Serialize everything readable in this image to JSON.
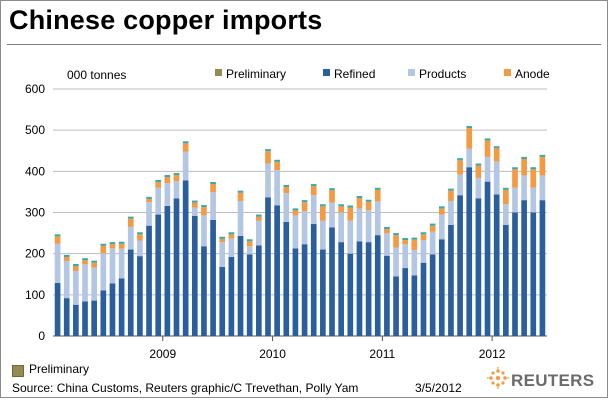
{
  "title": "Chinese copper imports",
  "footer": {
    "preliminary_label": "Preliminary",
    "source": "Source: China Customs, Reuters graphic/C Trevethan, Polly Yam",
    "date": "3/5/2012",
    "logo_text": "REUTERS"
  },
  "colors": {
    "refined": "#2a5e9c",
    "products": "#b3c7e4",
    "anode": "#f39a45",
    "preliminary": "#948b54",
    "top": "#41a6a6",
    "grid": "#bdbdbd"
  },
  "chart_data": {
    "type": "bar",
    "stacked": true,
    "unit_label": "000 tonnes",
    "ylim": [
      0,
      600
    ],
    "yticks": [
      0,
      100,
      200,
      300,
      400,
      500,
      600
    ],
    "grid": true,
    "legend_position": "top",
    "legend": [
      "Preliminary",
      "Refined",
      "Products",
      "Anode"
    ],
    "x_tick_labels": [
      {
        "label": "2009",
        "category_index": 12
      },
      {
        "label": "2010",
        "category_index": 24
      },
      {
        "label": "2011",
        "category_index": 36
      },
      {
        "label": "2012",
        "category_index": 48
      }
    ],
    "categories": [
      "2008-01",
      "2008-02",
      "2008-03",
      "2008-04",
      "2008-05",
      "2008-06",
      "2008-07",
      "2008-08",
      "2008-09",
      "2008-10",
      "2008-11",
      "2008-12",
      "2009-01",
      "2009-02",
      "2009-03",
      "2009-04",
      "2009-05",
      "2009-06",
      "2009-07",
      "2009-08",
      "2009-09",
      "2009-10",
      "2009-11",
      "2009-12",
      "2010-01",
      "2010-02",
      "2010-03",
      "2010-04",
      "2010-05",
      "2010-06",
      "2010-07",
      "2010-08",
      "2010-09",
      "2010-10",
      "2010-11",
      "2010-12",
      "2011-01",
      "2011-02",
      "2011-03",
      "2011-04",
      "2011-05",
      "2011-06",
      "2011-07",
      "2011-08",
      "2011-09",
      "2011-10",
      "2011-11",
      "2011-12",
      "2012-01",
      "2012-02",
      "2012-03",
      "2012-04",
      "2012-05",
      "2012-06"
    ],
    "series": [
      {
        "name": "Refined",
        "values": [
          129,
          92,
          76,
          84,
          86,
          111,
          128,
          140,
          210,
          194,
          268,
          295,
          316,
          334,
          378,
          292,
          218,
          282,
          168,
          192,
          243,
          198,
          220,
          337,
          317,
          277,
          213,
          223,
          272,
          210,
          264,
          228,
          200,
          230,
          228,
          245,
          195,
          145,
          165,
          147,
          178,
          198,
          235,
          270,
          342,
          410,
          334,
          375,
          344,
          270,
          300,
          330,
          300,
          330
        ]
      },
      {
        "name": "Products",
        "values": [
          95,
          90,
          82,
          90,
          80,
          90,
          85,
          72,
          55,
          38,
          57,
          65,
          55,
          42,
          70,
          20,
          75,
          67,
          60,
          45,
          85,
          20,
          60,
          82,
          86,
          70,
          80,
          80,
          70,
          70,
          60,
          72,
          80,
          80,
          78,
          82,
          55,
          70,
          58,
          62,
          55,
          55,
          60,
          58,
          50,
          45,
          50,
          60,
          80,
          50,
          60,
          60,
          60,
          60
        ]
      },
      {
        "name": "Anode",
        "values": [
          18,
          10,
          12,
          10,
          12,
          18,
          10,
          12,
          20,
          15,
          8,
          14,
          15,
          15,
          20,
          12,
          20,
          20,
          8,
          10,
          20,
          12,
          10,
          30,
          20,
          15,
          12,
          22,
          22,
          35,
          30,
          15,
          32,
          25,
          20,
          28,
          10,
          30,
          10,
          25,
          14,
          15,
          15,
          25,
          35,
          50,
          30,
          40,
          32,
          35,
          45,
          40,
          45,
          45
        ]
      },
      {
        "name": "Preliminary",
        "values": [
          5,
          5,
          5,
          5,
          5,
          5,
          5,
          5,
          5,
          5,
          5,
          5,
          5,
          5,
          5,
          5,
          5,
          5,
          5,
          5,
          5,
          5,
          5,
          5,
          5,
          5,
          5,
          5,
          5,
          5,
          5,
          5,
          5,
          5,
          5,
          5,
          5,
          5,
          5,
          5,
          5,
          5,
          5,
          5,
          5,
          5,
          5,
          5,
          5,
          5,
          5,
          5,
          5,
          5
        ]
      }
    ]
  }
}
